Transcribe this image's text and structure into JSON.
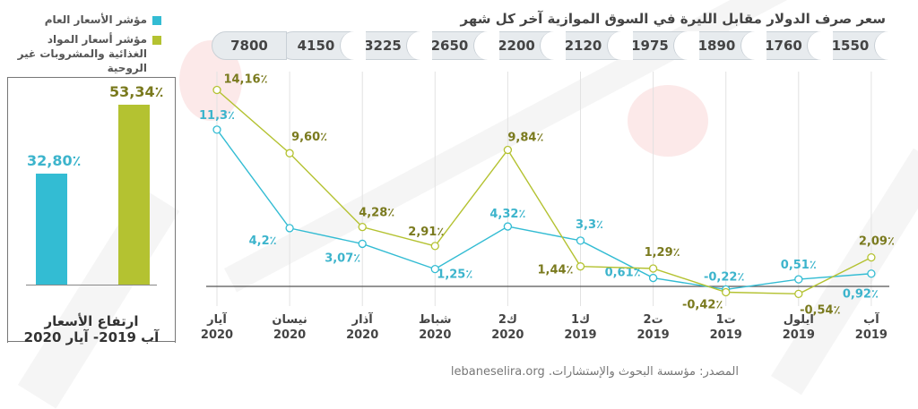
{
  "legend": {
    "items": [
      {
        "label": "مؤشر الأسعار العام",
        "color": "#33bcd3"
      },
      {
        "label": "مؤشر أسعار  المواد الغذائية والمشروبات غير الروحية",
        "color": "#b4c231"
      }
    ]
  },
  "summary": {
    "title_line1": "ارتفاع الأسعار",
    "title_line2": "آب 2019- آيار 2020",
    "bars": [
      {
        "name": "general-index",
        "value": 32.8,
        "label": "32,80٪",
        "color": "#33bcd3"
      },
      {
        "name": "food-index",
        "value": 53.34,
        "label": "53,34٪",
        "color": "#b4c231"
      }
    ]
  },
  "exchange_rate": {
    "title": "سعر صرف الدولار مقابل الليرة في السوق الموازية آخر كل شهر",
    "values": [
      "7800",
      "4150",
      "3225",
      "2650",
      "2200",
      "2120",
      "1975",
      "1890",
      "1760",
      "1550"
    ]
  },
  "source": "المصدر: مؤسسة البحوث والإستشارات. lebaneselira.org",
  "colors": {
    "general": "#33bcd3",
    "food": "#b4c231",
    "general_text": "#3cb4cc",
    "food_text": "#7a7a1e"
  },
  "chart_data": {
    "type": "line",
    "title": "سعر صرف الدولار مقابل الليرة في السوق الموازية آخر كل شهر",
    "xlabel": "",
    "ylabel": "",
    "x": [
      "آيار 2020",
      "نيسان 2020",
      "آذار 2020",
      "شباط 2020",
      "ك2 2020",
      "ك1 2019",
      "ت2 2019",
      "ت1 2019",
      "ايلول 2019",
      "آب 2019"
    ],
    "x_month": [
      "آيار",
      "نيسان",
      "آذار",
      "شباط",
      "ك2",
      "ك1",
      "ت2",
      "ت1",
      "ايلول",
      "آب"
    ],
    "x_year": [
      "2020",
      "2020",
      "2020",
      "2020",
      "2020",
      "2019",
      "2019",
      "2019",
      "2019",
      "2019"
    ],
    "series": [
      {
        "name": "مؤشر الأسعار العام",
        "values": [
          11.3,
          4.2,
          3.07,
          1.25,
          4.32,
          3.3,
          0.61,
          -0.22,
          0.51,
          0.92
        ],
        "labels": [
          "11,3٪",
          "4,2٪",
          "3,07٪",
          "1,25٪",
          "4,32٪",
          "3,3٪",
          "0,61٪",
          "-0,22٪",
          "0,51٪",
          "0,92٪"
        ]
      },
      {
        "name": "مؤشر أسعار المواد الغذائية والمشروبات غير الروحية",
        "values": [
          14.16,
          9.6,
          4.28,
          2.91,
          9.84,
          1.44,
          1.29,
          -0.42,
          -0.54,
          2.09
        ],
        "labels": [
          "14,16٪",
          "9,60٪",
          "4,28٪",
          "2,91٪",
          "9,84٪",
          "1,44٪",
          "1,29٪",
          "-0,42٪",
          "-0,54٪",
          "2,09٪"
        ]
      }
    ],
    "ylim": [
      -1,
      15
    ],
    "grid": "vertical",
    "legend": "top-left"
  }
}
